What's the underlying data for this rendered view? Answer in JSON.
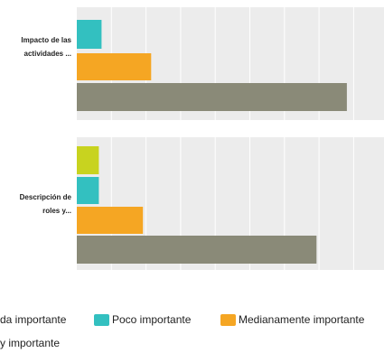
{
  "chart_data": {
    "type": "bar",
    "orientation": "horizontal",
    "grid": true,
    "legend_position": "bottom",
    "xlim": [
      0,
      100
    ],
    "categories": [
      "Impacto de las actividades ...",
      "Descripción de roles y..."
    ],
    "category_label_lines": [
      [
        "Impacto de las",
        "actividades ..."
      ],
      [
        "Descripción de",
        "roles y..."
      ]
    ],
    "series": [
      {
        "name": "Nada importante",
        "color": "#c8d31f",
        "values": [
          0,
          8
        ]
      },
      {
        "name": "Poco importante",
        "color": "#33c0c0",
        "values": [
          9,
          8
        ]
      },
      {
        "name": "Medianamente importante",
        "color": "#f5a623",
        "values": [
          27,
          24
        ]
      },
      {
        "name": "Muy importante",
        "color": "#8a8a78",
        "values": [
          98,
          87
        ]
      }
    ],
    "legend_visible_text": [
      "da importante",
      "Poco importante",
      "Medianamente importante",
      "y importante"
    ]
  }
}
